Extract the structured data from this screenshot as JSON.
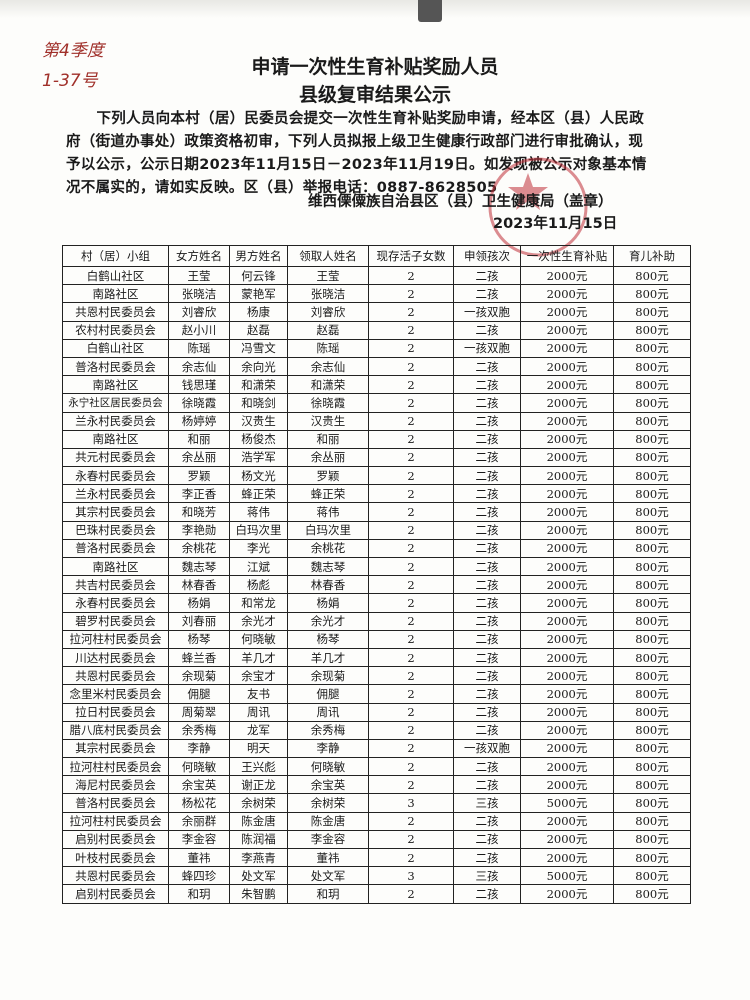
{
  "handwritten_note": {
    "line1": "第4季度",
    "line2": "1-37号"
  },
  "title": {
    "line1": "申请一次性生育补贴奖励人员",
    "line2": "县级复审结果公示"
  },
  "body_text": "下列人员向本村（居）民委员会提交一次性生育补贴奖励申请，经本区（县）人民政府（街道办事处）政策资格初审，下列人员拟报上级卫生健康行政部门进行审批确认，现予以公示，公示日期2023年11月15日－2023年11月19日。如发现被公示对象基本情况不属实的，请如实反映。区（县）举报电话：0887-8628505",
  "signature": {
    "org": "维西傈僳族自治县区（县）卫生健康局（盖章）",
    "date": "2023年11月15日"
  },
  "seal": {
    "color": "#c0303a",
    "icon": "star-icon"
  },
  "table": {
    "headers": [
      "村（居）小组",
      "女方姓名",
      "男方姓名",
      "领取人姓名",
      "现存活子女数",
      "申领孩次",
      "一次性生育补贴",
      "育儿补助"
    ],
    "rows": [
      [
        "白鹤山社区",
        "王莹",
        "何云锋",
        "王莹",
        "2",
        "二孩",
        "2000元",
        "800元"
      ],
      [
        "南路社区",
        "张晓洁",
        "蒙艳军",
        "张晓洁",
        "2",
        "二孩",
        "2000元",
        "800元"
      ],
      [
        "共恩村民委员会",
        "刘睿欣",
        "杨康",
        "刘睿欣",
        "2",
        "一孩双胞",
        "2000元",
        "800元"
      ],
      [
        "农村村民委员会",
        "赵小川",
        "赵磊",
        "赵磊",
        "2",
        "二孩",
        "2000元",
        "800元"
      ],
      [
        "白鹤山社区",
        "陈瑶",
        "冯雪文",
        "陈瑶",
        "2",
        "一孩双胞",
        "2000元",
        "800元"
      ],
      [
        "普洛村民委员会",
        "余志仙",
        "余向光",
        "余志仙",
        "2",
        "二孩",
        "2000元",
        "800元"
      ],
      [
        "南路社区",
        "钱思瑾",
        "和潇荣",
        "和潇荣",
        "2",
        "二孩",
        "2000元",
        "800元"
      ],
      [
        "永宁社区居民委员会",
        "徐晓霞",
        "和晓剑",
        "徐晓霞",
        "2",
        "二孩",
        "2000元",
        "800元"
      ],
      [
        "兰永村民委员会",
        "杨婷婷",
        "汉贵生",
        "汉贵生",
        "2",
        "二孩",
        "2000元",
        "800元"
      ],
      [
        "南路社区",
        "和丽",
        "杨俊杰",
        "和丽",
        "2",
        "二孩",
        "2000元",
        "800元"
      ],
      [
        "共元村民委员会",
        "余丛丽",
        "浩学军",
        "余丛丽",
        "2",
        "二孩",
        "2000元",
        "800元"
      ],
      [
        "永春村民委员会",
        "罗颖",
        "杨文光",
        "罗颖",
        "2",
        "二孩",
        "2000元",
        "800元"
      ],
      [
        "兰永村民委员会",
        "李正香",
        "蜂正荣",
        "蜂正荣",
        "2",
        "二孩",
        "2000元",
        "800元"
      ],
      [
        "其宗村民委员会",
        "和晓芳",
        "蒋伟",
        "蒋伟",
        "2",
        "二孩",
        "2000元",
        "800元"
      ],
      [
        "巴珠村民委员会",
        "李艳勋",
        "白玛次里",
        "白玛次里",
        "2",
        "二孩",
        "2000元",
        "800元"
      ],
      [
        "普洛村民委员会",
        "余桃花",
        "李光",
        "余桃花",
        "2",
        "二孩",
        "2000元",
        "800元"
      ],
      [
        "南路社区",
        "魏志琴",
        "江斌",
        "魏志琴",
        "2",
        "二孩",
        "2000元",
        "800元"
      ],
      [
        "共吉村民委员会",
        "林春香",
        "杨彪",
        "林春香",
        "2",
        "二孩",
        "2000元",
        "800元"
      ],
      [
        "永春村民委员会",
        "杨娟",
        "和常龙",
        "杨娟",
        "2",
        "二孩",
        "2000元",
        "800元"
      ],
      [
        "碧罗村民委员会",
        "刘春丽",
        "余光才",
        "余光才",
        "2",
        "二孩",
        "2000元",
        "800元"
      ],
      [
        "拉河柱村民委员会",
        "杨琴",
        "何晓敏",
        "杨琴",
        "2",
        "二孩",
        "2000元",
        "800元"
      ],
      [
        "川达村民委员会",
        "蜂兰香",
        "羊几才",
        "羊几才",
        "2",
        "二孩",
        "2000元",
        "800元"
      ],
      [
        "共恩村民委员会",
        "余现菊",
        "余宝才",
        "余现菊",
        "2",
        "二孩",
        "2000元",
        "800元"
      ],
      [
        "念里米村民委员会",
        "佣腿",
        "友书",
        "佣腿",
        "2",
        "二孩",
        "2000元",
        "800元"
      ],
      [
        "拉日村民委员会",
        "周菊翠",
        "周讯",
        "周讯",
        "2",
        "二孩",
        "2000元",
        "800元"
      ],
      [
        "腊八底村民委员会",
        "余秀梅",
        "龙军",
        "余秀梅",
        "2",
        "二孩",
        "2000元",
        "800元"
      ],
      [
        "其宗村民委员会",
        "李静",
        "明天",
        "李静",
        "2",
        "一孩双胞",
        "2000元",
        "800元"
      ],
      [
        "拉河柱村民委员会",
        "何晓敏",
        "王兴彪",
        "何晓敏",
        "2",
        "二孩",
        "2000元",
        "800元"
      ],
      [
        "海尼村民委员会",
        "余宝英",
        "谢正龙",
        "余宝英",
        "2",
        "二孩",
        "2000元",
        "800元"
      ],
      [
        "普洛村民委员会",
        "杨松花",
        "余树荣",
        "余树荣",
        "3",
        "三孩",
        "5000元",
        "800元"
      ],
      [
        "拉河柱村民委员会",
        "余丽群",
        "陈金唐",
        "陈金唐",
        "2",
        "二孩",
        "2000元",
        "800元"
      ],
      [
        "启别村民委员会",
        "李金容",
        "陈润福",
        "李金容",
        "2",
        "二孩",
        "2000元",
        "800元"
      ],
      [
        "叶枝村民委员会",
        "董祎",
        "李燕青",
        "董祎",
        "2",
        "二孩",
        "2000元",
        "800元"
      ],
      [
        "共恩村民委员会",
        "蜂四珍",
        "处文军",
        "处文军",
        "3",
        "三孩",
        "5000元",
        "800元"
      ],
      [
        "启别村民委员会",
        "和玥",
        "朱智鹏",
        "和玥",
        "2",
        "二孩",
        "2000元",
        "800元"
      ]
    ]
  }
}
